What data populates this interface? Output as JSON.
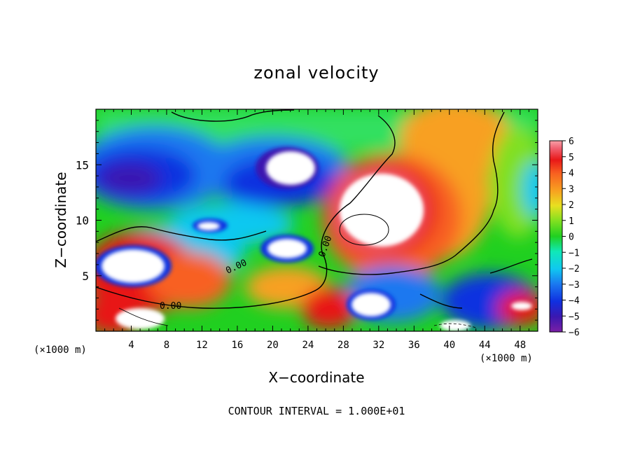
{
  "chart_data": {
    "type": "heatmap",
    "title": "zonal velocity",
    "xlabel": "X−coordinate",
    "ylabel": "Z−coordinate",
    "x_unit": "(×1000 m)",
    "y_unit": "(×1000 m)",
    "xlim": [
      0,
      50
    ],
    "ylim": [
      0,
      20
    ],
    "x_ticks": [
      "4",
      "8",
      "12",
      "16",
      "20",
      "24",
      "28",
      "32",
      "36",
      "40",
      "44",
      "48"
    ],
    "y_ticks": [
      "5",
      "10",
      "15"
    ],
    "colorbar": {
      "ticks": [
        "6",
        "5",
        "4",
        "3",
        "2",
        "1",
        "0",
        "−1",
        "−2",
        "−3",
        "−4",
        "−5",
        "−6"
      ],
      "range": [
        -6,
        6
      ],
      "colors": [
        "#7a1fa6",
        "#3a18b0",
        "#1030e0",
        "#1a78f0",
        "#10c8f0",
        "#10e8b8",
        "#20d020",
        "#80e020",
        "#e8e020",
        "#f8a020",
        "#f86020",
        "#e81818",
        "#f06070",
        "#f8a0a8"
      ]
    },
    "contour_labels": [
      "0.00",
      "0.00",
      "0.00"
    ],
    "contour_interval_label": "CONTOUR INTERVAL = 1.000E+01"
  }
}
